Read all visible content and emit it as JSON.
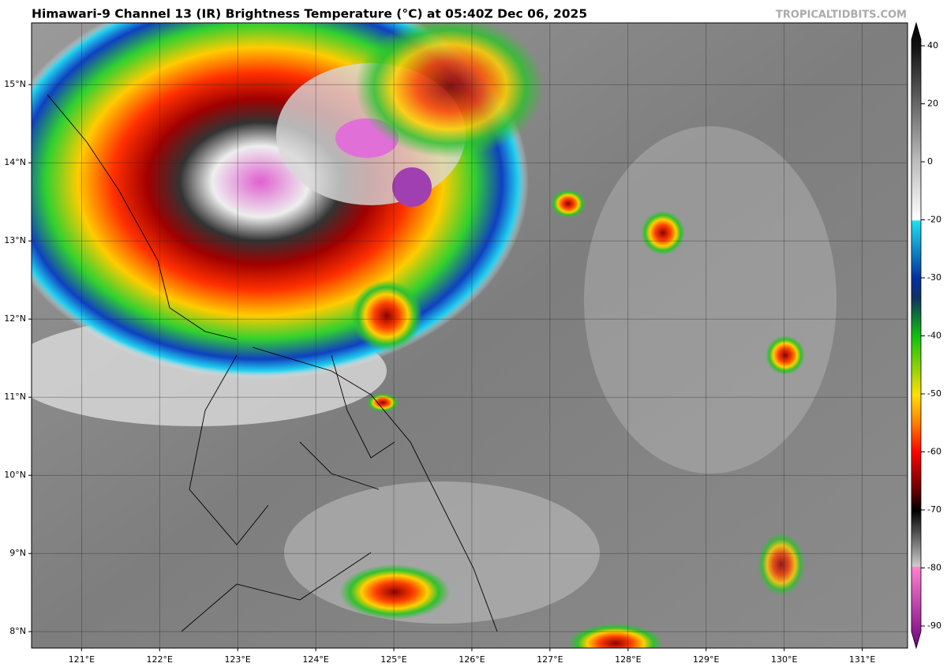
{
  "map": {
    "title": "Himawari-9 Channel 13 (IR) Brightness Temperature (°C) at 05:40Z Dec 06, 2025",
    "watermark": "TROPICALTIDBITS.COM",
    "lonlim": [
      120.36,
      131.58
    ],
    "latlim": [
      7.79,
      15.79
    ],
    "lonticks": [
      {
        "value": 121,
        "label": "121°E"
      },
      {
        "value": 122,
        "label": "122°E"
      },
      {
        "value": 123,
        "label": "123°E"
      },
      {
        "value": 124,
        "label": "124°E"
      },
      {
        "value": 125,
        "label": "125°E"
      },
      {
        "value": 126,
        "label": "126°E"
      },
      {
        "value": 127,
        "label": "127°E"
      },
      {
        "value": 128,
        "label": "128°E"
      },
      {
        "value": 129,
        "label": "129°E"
      },
      {
        "value": 130,
        "label": "130°E"
      },
      {
        "value": 131,
        "label": "131°E"
      }
    ],
    "latticks": [
      {
        "value": 15,
        "label": "15°N"
      },
      {
        "value": 14,
        "label": "14°N"
      },
      {
        "value": 13,
        "label": "13°N"
      },
      {
        "value": 12,
        "label": "12°N"
      },
      {
        "value": 11,
        "label": "11°N"
      },
      {
        "value": 10,
        "label": "10°N"
      },
      {
        "value": 9,
        "label": "9°N"
      },
      {
        "value": 8,
        "label": "8°N"
      }
    ],
    "colorbar_ticks": [
      40,
      20,
      0,
      -20,
      -30,
      -40,
      -50,
      -60,
      -70,
      -80,
      -90
    ]
  }
}
